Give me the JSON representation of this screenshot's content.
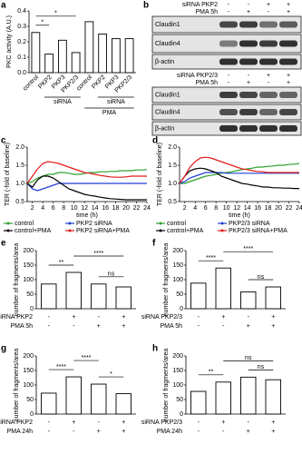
{
  "chart_data": [
    {
      "panel": "a",
      "type": "bar",
      "ylabel": "PKC activity (A.U.)",
      "categories": [
        "control",
        "PKP2",
        "PKP3",
        "PKP2/3",
        "control",
        "PKP2",
        "PKP3",
        "PKP2/3"
      ],
      "values": [
        0.26,
        0.12,
        0.21,
        0.13,
        0.33,
        0.25,
        0.22,
        0.22
      ],
      "color": "#ffffff",
      "edgecolor": "#000000",
      "ylim": [
        0,
        0.4
      ],
      "yticks": [
        {
          "value": 0,
          "label": "0.0"
        },
        {
          "value": 0.1,
          "label": "0.1"
        },
        {
          "value": 0.2,
          "label": "0.2"
        },
        {
          "value": 0.3,
          "label": "0.3"
        },
        {
          "value": 0.4,
          "label": "0.4"
        }
      ],
      "group_labels": [
        "siRNA",
        "siRNA",
        "PMA"
      ],
      "annotations": [
        "*",
        "*"
      ]
    },
    {
      "panel": "c",
      "type": "line",
      "ylabel": "TER (-fold of baseline)",
      "xlabel": "time (h)",
      "x": [
        1,
        2,
        3,
        4,
        5,
        6,
        7,
        8,
        9,
        10,
        11,
        12,
        13,
        14,
        15,
        16,
        17,
        18,
        19,
        20,
        21,
        22,
        23,
        24
      ],
      "xlim": [
        1,
        24
      ],
      "xticks": [
        2,
        4,
        6,
        8,
        10,
        12,
        14,
        16,
        18,
        20,
        22,
        24
      ],
      "ylim": [
        0.5,
        2.0
      ],
      "yticks": [
        {
          "value": 0.5,
          "label": "0.5"
        },
        {
          "value": 1.0,
          "label": "1.0"
        },
        {
          "value": 1.5,
          "label": "1.5"
        },
        {
          "value": 2.0,
          "label": "2.0"
        }
      ],
      "series": [
        {
          "name": "control",
          "color": "#2ca02c",
          "values": [
            1.0,
            1.05,
            1.15,
            1.2,
            1.25,
            1.25,
            1.3,
            1.3,
            1.28,
            1.25,
            1.25,
            1.27,
            1.3,
            1.3,
            1.32,
            1.32,
            1.33,
            1.33,
            1.35,
            1.35,
            1.35,
            1.37,
            1.37,
            1.38
          ]
        },
        {
          "name": "PKP2 siRNA",
          "color": "#1f3fd6",
          "values": [
            1.0,
            0.85,
            0.8,
            0.85,
            0.9,
            0.95,
            1.0,
            1.0,
            1.0,
            1.0,
            1.0,
            1.0,
            1.0,
            1.0,
            1.0,
            1.0,
            1.0,
            1.0,
            1.0,
            1.0,
            1.0,
            1.0,
            1.0,
            1.0
          ]
        },
        {
          "name": "control+PMA",
          "color": "#000000",
          "values": [
            1.0,
            0.9,
            1.1,
            1.2,
            1.2,
            1.15,
            1.05,
            0.95,
            0.85,
            0.8,
            0.75,
            0.7,
            0.67,
            0.65,
            0.62,
            0.6,
            0.58,
            0.57,
            0.56,
            0.55,
            0.55,
            0.55,
            0.55,
            0.55
          ]
        },
        {
          "name": "PKP2 siRNA+PMA",
          "color": "#e31a1c",
          "values": [
            1.0,
            1.2,
            1.4,
            1.55,
            1.6,
            1.58,
            1.55,
            1.5,
            1.45,
            1.4,
            1.35,
            1.3,
            1.28,
            1.25,
            1.22,
            1.2,
            1.18,
            1.17,
            1.17,
            1.18,
            1.2,
            1.2,
            1.2,
            1.2
          ]
        }
      ]
    },
    {
      "panel": "d",
      "type": "line",
      "ylabel": "TER (-fold of baseline)",
      "xlabel": "time (h)",
      "x": [
        1,
        2,
        3,
        4,
        5,
        6,
        7,
        8,
        9,
        10,
        11,
        12,
        13,
        14,
        15,
        16,
        17,
        18,
        19,
        20,
        21,
        22,
        23,
        24
      ],
      "xlim": [
        1,
        24
      ],
      "xticks": [
        2,
        4,
        6,
        8,
        10,
        12,
        14,
        16,
        18,
        20,
        22,
        24
      ],
      "ylim": [
        0.5,
        2.0
      ],
      "yticks": [
        {
          "value": 0.5,
          "label": "0.5"
        },
        {
          "value": 1.0,
          "label": "1.0"
        },
        {
          "value": 1.5,
          "label": "1.5"
        },
        {
          "value": 2.0,
          "label": "2.0"
        }
      ],
      "series": [
        {
          "name": "control",
          "color": "#2ca02c",
          "values": [
            1.0,
            1.0,
            1.05,
            1.1,
            1.15,
            1.2,
            1.22,
            1.25,
            1.28,
            1.3,
            1.32,
            1.35,
            1.38,
            1.4,
            1.42,
            1.45,
            1.45,
            1.47,
            1.48,
            1.5,
            1.5,
            1.52,
            1.53,
            1.55
          ]
        },
        {
          "name": "PKP2/3 siRNA",
          "color": "#1f3fd6",
          "values": [
            1.0,
            1.05,
            1.15,
            1.2,
            1.25,
            1.3,
            1.3,
            1.3,
            1.3,
            1.28,
            1.28,
            1.28,
            1.28,
            1.28,
            1.28,
            1.28,
            1.28,
            1.28,
            1.28,
            1.28,
            1.28,
            1.28,
            1.28,
            1.28
          ]
        },
        {
          "name": "control+PMA",
          "color": "#000000",
          "values": [
            1.0,
            1.2,
            1.35,
            1.4,
            1.42,
            1.4,
            1.35,
            1.3,
            1.2,
            1.15,
            1.1,
            1.05,
            1.0,
            0.98,
            0.95,
            0.93,
            0.9,
            0.9,
            0.88,
            0.88,
            0.87,
            0.87,
            0.86,
            0.86
          ]
        },
        {
          "name": "PKP2/3 siRNA+PMA",
          "color": "#e31a1c",
          "values": [
            1.0,
            1.2,
            1.45,
            1.6,
            1.7,
            1.72,
            1.7,
            1.65,
            1.6,
            1.55,
            1.5,
            1.45,
            1.4,
            1.38,
            1.35,
            1.33,
            1.32,
            1.3,
            1.3,
            1.3,
            1.3,
            1.3,
            1.3,
            1.3
          ]
        }
      ]
    },
    {
      "panel": "e",
      "type": "bar",
      "ylabel": "number of fragments/area",
      "values": [
        85,
        125,
        85,
        75
      ],
      "color": "#ffffff",
      "edgecolor": "#000000",
      "ylim": [
        0,
        200
      ],
      "yticks": [
        0,
        50,
        100,
        150,
        200
      ],
      "conditions": [
        {
          "name": "siRNA PKP2",
          "signs": [
            "-",
            "+",
            "-",
            "+"
          ]
        },
        {
          "name": "PMA 5h",
          "signs": [
            "-",
            "-",
            "+",
            "+"
          ]
        }
      ],
      "annotations": [
        "**",
        "****",
        "ns"
      ]
    },
    {
      "panel": "f",
      "type": "bar",
      "ylabel": "number of fragments/area",
      "values": [
        88,
        140,
        58,
        75
      ],
      "color": "#ffffff",
      "edgecolor": "#000000",
      "ylim": [
        0,
        200
      ],
      "yticks": [
        0,
        50,
        100,
        150,
        200
      ],
      "conditions": [
        {
          "name": "siRNA PKP2/3",
          "signs": [
            "-",
            "+",
            "-",
            "+"
          ]
        },
        {
          "name": "PMA 5h",
          "signs": [
            "-",
            "-",
            "+",
            "+"
          ]
        }
      ],
      "annotations": [
        "****",
        "****",
        "ns"
      ]
    },
    {
      "panel": "g",
      "type": "bar",
      "ylabel": "number of fragments/area",
      "values": [
        72,
        128,
        103,
        70
      ],
      "color": "#ffffff",
      "edgecolor": "#000000",
      "ylim": [
        0,
        200
      ],
      "yticks": [
        0,
        50,
        100,
        150,
        200
      ],
      "conditions": [
        {
          "name": "siRNA PKP2",
          "signs": [
            "-",
            "+",
            "-",
            "+"
          ]
        },
        {
          "name": "PMA 24h",
          "signs": [
            "-",
            "-",
            "+",
            "+"
          ]
        }
      ],
      "annotations": [
        "****",
        "****",
        "*"
      ]
    },
    {
      "panel": "h",
      "type": "bar",
      "ylabel": "number of fragments/area",
      "values": [
        78,
        110,
        127,
        118
      ],
      "color": "#ffffff",
      "edgecolor": "#000000",
      "ylim": [
        0,
        200
      ],
      "yticks": [
        0,
        50,
        100,
        150,
        200
      ],
      "conditions": [
        {
          "name": "siRNA PKP2/3",
          "signs": [
            "-",
            "+",
            "-",
            "+"
          ]
        },
        {
          "name": "PMA 24h",
          "signs": [
            "-",
            "-",
            "+",
            "+"
          ]
        }
      ],
      "annotations": [
        "**",
        "ns",
        "ns"
      ]
    }
  ],
  "blots": {
    "panel": "b",
    "groups": [
      {
        "conditions": [
          {
            "name": "siRNA PKP2",
            "signs": [
              "-",
              "-",
              "+",
              "+"
            ]
          },
          {
            "name": "PMA 5h",
            "signs": [
              "-",
              "+",
              "-",
              "+"
            ]
          }
        ],
        "bands": [
          "Claudin1",
          "Claudin4",
          "β-actin"
        ]
      },
      {
        "conditions": [
          {
            "name": "siRNA PKP2/3",
            "signs": [
              "-",
              "-",
              "+",
              "+"
            ]
          },
          {
            "name": "PMA 5h",
            "signs": [
              "-",
              "+",
              "-",
              "+"
            ]
          }
        ],
        "bands": [
          "Claudin1",
          "Claudin4",
          "β-actin"
        ]
      }
    ]
  }
}
